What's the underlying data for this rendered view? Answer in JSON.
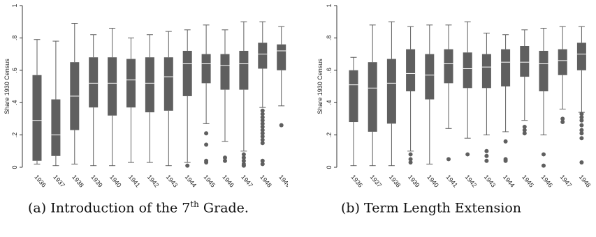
{
  "colors": {
    "box": "#5f5f5f",
    "axis": "#333333",
    "outlier": "#5f5f5f",
    "background": "#ffffff"
  },
  "chart_data": [
    {
      "type": "boxplot",
      "panel_label": "(a)",
      "caption_prefix": "Introduction of the 7",
      "caption_sup": "th",
      "caption_suffix": " Grade.",
      "ylabel": "Share 1930 Census",
      "xlabel": "",
      "ylim": [
        0,
        1
      ],
      "yticks": [
        0,
        0.2,
        0.4,
        0.6,
        0.8,
        1
      ],
      "ytick_labels": [
        "0",
        ".2",
        ".4",
        ".6",
        ".8",
        "1"
      ],
      "grid": false,
      "categories": [
        "1936",
        "1937",
        "1938",
        "1939",
        "1940",
        "1941",
        "1942",
        "1943",
        "1944",
        "1945",
        "1946",
        "1947",
        "1948",
        "1949"
      ],
      "boxes": [
        {
          "min": 0.02,
          "q1": 0.04,
          "median": 0.29,
          "q3": 0.57,
          "max": 0.79,
          "outliers": []
        },
        {
          "min": 0.01,
          "q1": 0.07,
          "median": 0.2,
          "q3": 0.42,
          "max": 0.78,
          "outliers": []
        },
        {
          "min": 0.02,
          "q1": 0.23,
          "median": 0.44,
          "q3": 0.65,
          "max": 0.89,
          "outliers": []
        },
        {
          "min": 0.01,
          "q1": 0.37,
          "median": 0.52,
          "q3": 0.68,
          "max": 0.82,
          "outliers": []
        },
        {
          "min": 0.01,
          "q1": 0.32,
          "median": 0.52,
          "q3": 0.68,
          "max": 0.86,
          "outliers": []
        },
        {
          "min": 0.03,
          "q1": 0.37,
          "median": 0.54,
          "q3": 0.67,
          "max": 0.8,
          "outliers": []
        },
        {
          "min": 0.03,
          "q1": 0.34,
          "median": 0.52,
          "q3": 0.68,
          "max": 0.82,
          "outliers": []
        },
        {
          "min": 0.01,
          "q1": 0.35,
          "median": 0.56,
          "q3": 0.68,
          "max": 0.84,
          "outliers": []
        },
        {
          "min": 0.03,
          "q1": 0.44,
          "median": 0.64,
          "q3": 0.72,
          "max": 0.85,
          "outliers": [
            0.01
          ]
        },
        {
          "min": 0.27,
          "q1": 0.52,
          "median": 0.64,
          "q3": 0.7,
          "max": 0.88,
          "outliers": [
            0.21,
            0.14,
            0.04,
            0.03
          ]
        },
        {
          "min": 0.16,
          "q1": 0.48,
          "median": 0.63,
          "q3": 0.7,
          "max": 0.85,
          "outliers": [
            0.06,
            0.04
          ]
        },
        {
          "min": 0.1,
          "q1": 0.48,
          "median": 0.64,
          "q3": 0.72,
          "max": 0.9,
          "outliers": [
            0.08,
            0.06,
            0.04,
            0.02,
            0.01
          ]
        },
        {
          "min": 0.37,
          "q1": 0.61,
          "median": 0.7,
          "q3": 0.77,
          "max": 0.9,
          "outliers": [
            0.35,
            0.33,
            0.31,
            0.29,
            0.27,
            0.25,
            0.23,
            0.21,
            0.19,
            0.17,
            0.15,
            0.04,
            0.02
          ]
        },
        {
          "min": 0.38,
          "q1": 0.6,
          "median": 0.72,
          "q3": 0.76,
          "max": 0.87,
          "outliers": [
            0.26
          ]
        }
      ]
    },
    {
      "type": "boxplot",
      "panel_label": "(b)",
      "caption_prefix": "Term Length Extension",
      "caption_sup": "",
      "caption_suffix": "",
      "ylabel": "Share 1930 Census",
      "xlabel": "",
      "ylim": [
        0,
        1
      ],
      "yticks": [
        0,
        0.2,
        0.4,
        0.6,
        0.8,
        1
      ],
      "ytick_labels": [
        "0",
        ".2",
        ".4",
        ".6",
        ".8",
        "1"
      ],
      "grid": false,
      "categories": [
        "1936",
        "1937",
        "1938",
        "1939",
        "1940",
        "1941",
        "1942",
        "1943",
        "1944",
        "1945",
        "1946",
        "1947",
        "1948",
        "1949"
      ],
      "boxes": [
        {
          "min": 0.01,
          "q1": 0.28,
          "median": 0.51,
          "q3": 0.6,
          "max": 0.68,
          "outliers": []
        },
        {
          "min": 0.01,
          "q1": 0.22,
          "median": 0.49,
          "q3": 0.65,
          "max": 0.88,
          "outliers": []
        },
        {
          "min": 0.01,
          "q1": 0.27,
          "median": 0.52,
          "q3": 0.67,
          "max": 0.9,
          "outliers": []
        },
        {
          "min": 0.1,
          "q1": 0.47,
          "median": 0.58,
          "q3": 0.73,
          "max": 0.87,
          "outliers": [
            0.08,
            0.05,
            0.03
          ]
        },
        {
          "min": 0.02,
          "q1": 0.42,
          "median": 0.57,
          "q3": 0.7,
          "max": 0.88,
          "outliers": []
        },
        {
          "min": 0.24,
          "q1": 0.52,
          "median": 0.64,
          "q3": 0.73,
          "max": 0.88,
          "outliers": [
            0.05
          ]
        },
        {
          "min": 0.18,
          "q1": 0.49,
          "median": 0.61,
          "q3": 0.71,
          "max": 0.9,
          "outliers": [
            0.08
          ]
        },
        {
          "min": 0.2,
          "q1": 0.49,
          "median": 0.62,
          "q3": 0.7,
          "max": 0.83,
          "outliers": [
            0.1,
            0.07,
            0.04
          ]
        },
        {
          "min": 0.22,
          "q1": 0.5,
          "median": 0.65,
          "q3": 0.73,
          "max": 0.82,
          "outliers": [
            0.16,
            0.05,
            0.04
          ]
        },
        {
          "min": 0.29,
          "q1": 0.56,
          "median": 0.65,
          "q3": 0.75,
          "max": 0.85,
          "outliers": [
            0.25,
            0.23,
            0.21
          ]
        },
        {
          "min": 0.2,
          "q1": 0.47,
          "median": 0.64,
          "q3": 0.72,
          "max": 0.86,
          "outliers": [
            0.08,
            0.01
          ]
        },
        {
          "min": 0.36,
          "q1": 0.57,
          "median": 0.66,
          "q3": 0.73,
          "max": 0.87,
          "outliers": [
            0.3,
            0.28
          ]
        },
        {
          "min": 0.34,
          "q1": 0.6,
          "median": 0.7,
          "q3": 0.77,
          "max": 0.87,
          "outliers": [
            0.33,
            0.31,
            0.29,
            0.26,
            0.23,
            0.21,
            0.18,
            0.03
          ]
        },
        {
          "min": 0.4,
          "q1": 0.61,
          "median": 0.67,
          "q3": 0.75,
          "max": 0.87,
          "outliers": [
            0.38,
            0.36,
            0.33,
            0.3,
            0.27,
            0.25
          ]
        }
      ]
    }
  ]
}
